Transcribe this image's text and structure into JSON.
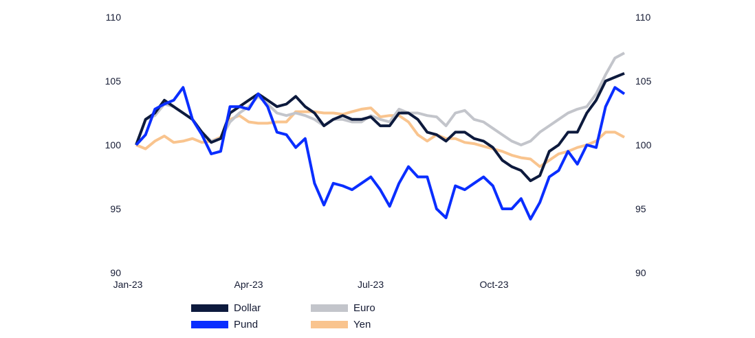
{
  "chart_data": {
    "type": "line",
    "title": "",
    "xlabel": "",
    "ylabel": "",
    "ylim": [
      90,
      110
    ],
    "yticks": [
      "90",
      "95",
      "100",
      "105",
      "110"
    ],
    "y_axes": "left and right",
    "grid": false,
    "legend_position": "bottom",
    "xlim": [
      "2023-01-01",
      "2023-12-31"
    ],
    "xticks": [
      {
        "date": "2023-01-01",
        "label": "Jan-23"
      },
      {
        "date": "2023-04-01",
        "label": "Apr-23"
      },
      {
        "date": "2023-07-01",
        "label": "Jul-23"
      },
      {
        "date": "2023-10-01",
        "label": "Oct-23"
      }
    ],
    "x_start": "2023-01-01",
    "x_step_days": 7,
    "series": [
      {
        "name": "Dollar",
        "color": "#0d1a3d",
        "values": [
          100,
          102,
          102.5,
          103.5,
          103,
          102.5,
          102,
          101,
          100.2,
          100.5,
          102.5,
          103,
          103.5,
          104,
          103.5,
          103,
          103.2,
          103.8,
          103,
          102.5,
          101.5,
          102,
          102.3,
          102,
          102,
          102.2,
          101.5,
          101.5,
          102.5,
          102.5,
          102,
          101,
          100.8,
          100.3,
          101,
          101,
          100.5,
          100.3,
          99.8,
          98.8,
          98.3,
          98,
          97.2,
          97.6,
          99.5,
          100,
          101,
          101,
          102.5,
          103.5,
          105,
          105.3,
          105.6
        ]
      },
      {
        "name": "Pund",
        "color": "#0a2eff",
        "values": [
          100,
          100.8,
          102.8,
          103.2,
          103.5,
          104.5,
          102,
          100.8,
          99.3,
          99.5,
          103,
          103,
          102.8,
          104,
          103,
          101,
          100.8,
          99.8,
          100.5,
          97,
          95.3,
          97,
          96.8,
          96.5,
          97,
          97.5,
          96.5,
          95.2,
          97,
          98.3,
          97.5,
          97.5,
          95,
          94.3,
          96.8,
          96.5,
          97,
          97.5,
          96.8,
          95,
          95,
          95.8,
          94.2,
          95.5,
          97.5,
          98,
          99.5,
          98.5,
          100,
          99.8,
          103,
          104.5,
          104
        ]
      },
      {
        "name": "Euro",
        "color": "#c3c5cb",
        "values": [
          100,
          102,
          102.3,
          103.2,
          103,
          102.5,
          102,
          101,
          100.3,
          100.5,
          101.8,
          102.5,
          103,
          103.8,
          103.2,
          102.5,
          102.3,
          102.5,
          102.3,
          102,
          101.5,
          102,
          102,
          101.8,
          101.8,
          102.3,
          102,
          101.8,
          102.8,
          102.5,
          102.5,
          102.3,
          102.2,
          101.5,
          102.5,
          102.7,
          102,
          101.8,
          101.3,
          100.8,
          100.3,
          100,
          100.3,
          101,
          101.5,
          102,
          102.5,
          102.8,
          103,
          104,
          105.5,
          106.8,
          107.2
        ]
      },
      {
        "name": "Yen",
        "color": "#f9c48e",
        "values": [
          100,
          99.7,
          100.3,
          100.7,
          100.2,
          100.3,
          100.5,
          100.2,
          100.3,
          100.6,
          102,
          102.3,
          101.8,
          101.7,
          101.7,
          101.8,
          101.8,
          102.6,
          102.6,
          102.6,
          102.5,
          102.5,
          102.4,
          102.6,
          102.8,
          102.9,
          102.2,
          102.3,
          102.3,
          101.8,
          100.8,
          100.3,
          100.8,
          100.5,
          100.5,
          100.2,
          100.1,
          99.9,
          99.7,
          99.5,
          99.2,
          99,
          98.9,
          98.3,
          98.8,
          99.3,
          99.5,
          99.8,
          100,
          100.3,
          101,
          101,
          100.6
        ]
      }
    ]
  }
}
